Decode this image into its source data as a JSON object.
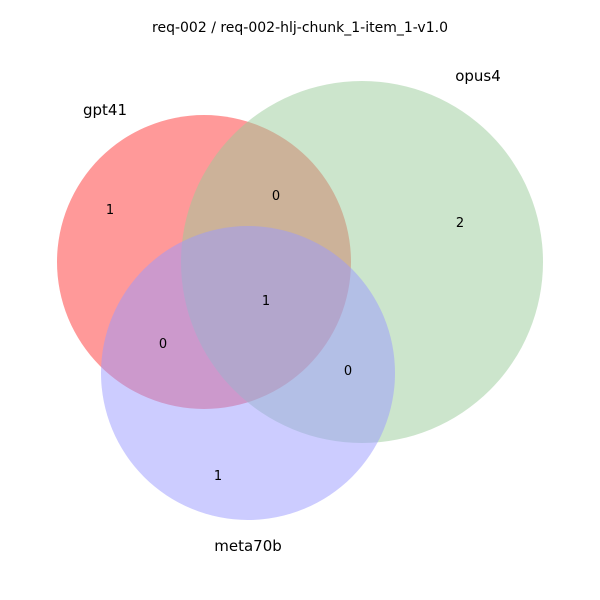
{
  "title": "req-002 / req-002-hlj-chunk_1-item_1-v1.0",
  "chart_data": {
    "type": "venn",
    "sets": [
      {
        "name": "gpt41",
        "color": "#ff9999"
      },
      {
        "name": "opus4",
        "color": "#99cc99"
      },
      {
        "name": "meta70b",
        "color": "#9999ff"
      }
    ],
    "regions": {
      "gpt41_only": "1",
      "opus4_only": "2",
      "meta70b_only": "1",
      "gpt41_opus4": "0",
      "gpt41_meta70b": "0",
      "opus4_meta70b": "0",
      "all_three": "1"
    }
  }
}
